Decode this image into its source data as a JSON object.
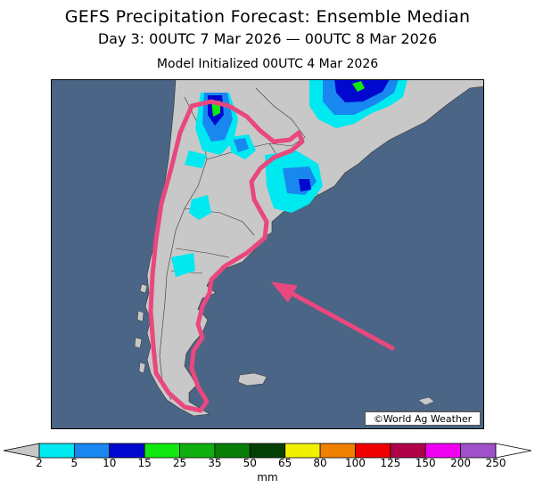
{
  "header": {
    "title": "GEFS Precipitation Forecast: Ensemble Median",
    "period": "Day 3: 00UTC 7 Mar 2026 — 00UTC 8 Mar 2026",
    "initialized": "Model Initialized 00UTC 4 Mar 2026"
  },
  "map": {
    "region": "Southern South America",
    "credit": "©World Ag Weather",
    "ocean_color": "#4a6585",
    "land_color": "#c8c8c8",
    "highlight_color": "#e8487e"
  },
  "legend": {
    "unit": "mm",
    "ticks": [
      "2",
      "5",
      "10",
      "15",
      "25",
      "35",
      "50",
      "65",
      "80",
      "100",
      "125",
      "150",
      "200",
      "250"
    ],
    "colors": [
      "#00e8f0",
      "#1888f0",
      "#0008d0",
      "#10e810",
      "#10b010",
      "#088008",
      "#044004",
      "#f0f000",
      "#f08000",
      "#f00000",
      "#b00048",
      "#f000f0",
      "#a050c8"
    ]
  }
}
